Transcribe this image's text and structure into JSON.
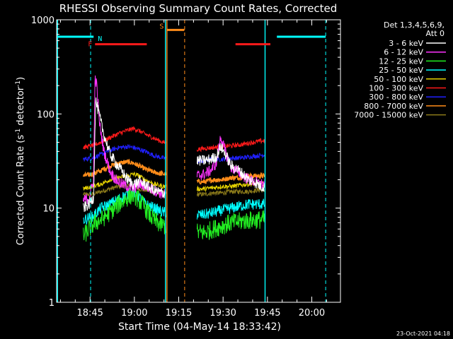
{
  "chart_data": {
    "type": "line",
    "title": "RHESSI Observing Summary Count Rates, Corrected",
    "xlabel": "Start Time (04-May-14 18:33:42)",
    "ylabel_main": "Corrected Count Rate (s",
    "ylabel_sup1": "-1",
    "ylabel_mid": " detector",
    "ylabel_sup2": "-1",
    "ylabel_end": ")",
    "y_scale": "log",
    "ylim": [
      1,
      1000
    ],
    "y_ticks": [
      "1",
      "10",
      "100",
      "1000"
    ],
    "xlim_minutes": [
      0,
      96
    ],
    "x_ticks": [
      "18:45",
      "19:00",
      "19:15",
      "19:30",
      "19:45",
      "20:00"
    ],
    "x_tick_minutes": [
      11.3,
      26.3,
      41.3,
      56.3,
      71.3,
      86.3
    ],
    "grid": false,
    "legend_header": [
      "Det 1,3,4,5,6,9,",
      "Att 0"
    ],
    "legend_position": "right",
    "series": [
      {
        "name": "3 - 6 keV",
        "color": "#ffffff"
      },
      {
        "name": "6 - 12 keV",
        "color": "#ff33ff"
      },
      {
        "name": "12 - 25 keV",
        "color": "#22ee22"
      },
      {
        "name": "25 - 50 keV",
        "color": "#00ffff"
      },
      {
        "name": "50 - 100 keV",
        "color": "#e6d200"
      },
      {
        "name": "100 - 300 keV",
        "color": "#ff1a1a"
      },
      {
        "name": "300 - 800 keV",
        "color": "#2020ff"
      },
      {
        "name": "800 - 7000 keV",
        "color": "#ff8c1a"
      },
      {
        "name": "7000 - 15000 keV",
        "color": "#8b7a1a"
      }
    ],
    "segments": [
      {
        "start": 9,
        "end": 37,
        "name": "3 - 6 keV",
        "points": [
          [
            9,
            10
          ],
          [
            11,
            11
          ],
          [
            12.5,
            13
          ],
          [
            13.2,
            140
          ],
          [
            14,
            110
          ],
          [
            16,
            60
          ],
          [
            18,
            38
          ],
          [
            20,
            30
          ],
          [
            22,
            25
          ],
          [
            24,
            20
          ],
          [
            26,
            18
          ],
          [
            28,
            19
          ],
          [
            30,
            18
          ],
          [
            32,
            16
          ],
          [
            34,
            15
          ],
          [
            36,
            14.5
          ],
          [
            37,
            14.5
          ]
        ]
      },
      {
        "start": 9,
        "end": 37,
        "name": "6 - 12 keV",
        "points": [
          [
            9,
            12
          ],
          [
            11,
            13
          ],
          [
            12.5,
            20
          ],
          [
            13,
            250
          ],
          [
            13.6,
            200
          ],
          [
            14.5,
            80
          ],
          [
            16,
            40
          ],
          [
            18,
            25
          ],
          [
            20,
            20
          ],
          [
            22,
            18
          ],
          [
            24,
            17
          ],
          [
            26,
            16
          ],
          [
            28,
            18
          ],
          [
            30,
            17
          ],
          [
            32,
            16
          ],
          [
            34,
            15
          ],
          [
            36,
            14
          ],
          [
            37,
            14
          ]
        ]
      },
      {
        "start": 9,
        "end": 37,
        "name": "12 - 25 keV",
        "points": [
          [
            9,
            5
          ],
          [
            11,
            6
          ],
          [
            13,
            7
          ],
          [
            15,
            7.5
          ],
          [
            18,
            9
          ],
          [
            21,
            11
          ],
          [
            24,
            13
          ],
          [
            26,
            14
          ],
          [
            28,
            12
          ],
          [
            30,
            10
          ],
          [
            32,
            8
          ],
          [
            34,
            7
          ],
          [
            36,
            6.5
          ],
          [
            37,
            6.5
          ]
        ]
      },
      {
        "start": 9,
        "end": 37,
        "name": "25 - 50 keV",
        "points": [
          [
            9,
            7.5
          ],
          [
            12,
            8
          ],
          [
            15,
            10
          ],
          [
            18,
            11
          ],
          [
            21,
            12.5
          ],
          [
            24,
            14
          ],
          [
            26,
            15
          ],
          [
            28,
            13
          ],
          [
            30,
            11
          ],
          [
            33,
            10
          ],
          [
            36,
            9
          ],
          [
            37,
            9
          ]
        ]
      },
      {
        "start": 9,
        "end": 37,
        "name": "50 - 100 keV",
        "points": [
          [
            9,
            16
          ],
          [
            12,
            17
          ],
          [
            15,
            18
          ],
          [
            18,
            20
          ],
          [
            21,
            21
          ],
          [
            24,
            22
          ],
          [
            26,
            23
          ],
          [
            28,
            22
          ],
          [
            30,
            20
          ],
          [
            33,
            18
          ],
          [
            36,
            17
          ],
          [
            37,
            17
          ]
        ]
      },
      {
        "start": 9,
        "end": 37,
        "name": "100 - 300 keV",
        "points": [
          [
            9,
            44
          ],
          [
            12,
            46
          ],
          [
            15,
            50
          ],
          [
            18,
            56
          ],
          [
            21,
            62
          ],
          [
            24,
            67
          ],
          [
            26,
            70
          ],
          [
            28,
            66
          ],
          [
            30,
            61
          ],
          [
            33,
            55
          ],
          [
            36,
            50
          ],
          [
            37,
            49
          ]
        ]
      },
      {
        "start": 9,
        "end": 37,
        "name": "300 - 800 keV",
        "points": [
          [
            9,
            33
          ],
          [
            12,
            34
          ],
          [
            15,
            37
          ],
          [
            18,
            41
          ],
          [
            21,
            44
          ],
          [
            24,
            45
          ],
          [
            26,
            44
          ],
          [
            28,
            42
          ],
          [
            30,
            40
          ],
          [
            33,
            36
          ],
          [
            36,
            34
          ],
          [
            37,
            34
          ]
        ]
      },
      {
        "start": 9,
        "end": 37,
        "name": "800 - 7000 keV",
        "points": [
          [
            9,
            22
          ],
          [
            12,
            23
          ],
          [
            15,
            25
          ],
          [
            18,
            28
          ],
          [
            21,
            30
          ],
          [
            24,
            31
          ],
          [
            26,
            30
          ],
          [
            28,
            28
          ],
          [
            30,
            26
          ],
          [
            33,
            24
          ],
          [
            36,
            23
          ],
          [
            37,
            23
          ]
        ]
      },
      {
        "start": 9,
        "end": 37,
        "name": "7000 - 15000 keV",
        "points": [
          [
            9,
            14
          ],
          [
            12,
            14
          ],
          [
            15,
            15
          ],
          [
            18,
            16
          ],
          [
            21,
            17
          ],
          [
            24,
            17.5
          ],
          [
            26,
            17
          ],
          [
            28,
            16
          ],
          [
            30,
            15.5
          ],
          [
            33,
            15
          ],
          [
            36,
            14.5
          ],
          [
            37,
            14.5
          ]
        ]
      },
      {
        "start": 47.5,
        "end": 70.5,
        "name": "3 - 6 keV",
        "points": [
          [
            47.5,
            32
          ],
          [
            50,
            32
          ],
          [
            52,
            33
          ],
          [
            54,
            35
          ],
          [
            55.5,
            45
          ],
          [
            57,
            38
          ],
          [
            59,
            28
          ],
          [
            61,
            26
          ],
          [
            63,
            23
          ],
          [
            65,
            20
          ],
          [
            67,
            19
          ],
          [
            69,
            17
          ],
          [
            70.5,
            17
          ]
        ]
      },
      {
        "start": 47.5,
        "end": 70.5,
        "name": "6 - 12 keV",
        "points": [
          [
            47.5,
            22
          ],
          [
            50,
            23
          ],
          [
            52,
            25
          ],
          [
            54,
            30
          ],
          [
            55.5,
            58
          ],
          [
            57,
            40
          ],
          [
            59,
            27
          ],
          [
            61,
            25
          ],
          [
            63,
            22
          ],
          [
            65,
            20
          ],
          [
            67,
            19
          ],
          [
            69,
            18
          ],
          [
            70.5,
            18
          ]
        ]
      },
      {
        "start": 47.5,
        "end": 70.5,
        "name": "12 - 25 keV",
        "points": [
          [
            47.5,
            5.5
          ],
          [
            50,
            5.5
          ],
          [
            53,
            6
          ],
          [
            56,
            6.5
          ],
          [
            59,
            7
          ],
          [
            62,
            7.2
          ],
          [
            65,
            7.4
          ],
          [
            68,
            7.5
          ],
          [
            70.5,
            7.6
          ]
        ]
      },
      {
        "start": 47.5,
        "end": 70.5,
        "name": "25 - 50 keV",
        "points": [
          [
            47.5,
            8.5
          ],
          [
            50,
            8.5
          ],
          [
            53,
            9
          ],
          [
            56,
            9.5
          ],
          [
            59,
            10
          ],
          [
            62,
            10.5
          ],
          [
            65,
            11
          ],
          [
            68,
            11
          ],
          [
            70.5,
            11
          ]
        ]
      },
      {
        "start": 47.5,
        "end": 70.5,
        "name": "50 - 100 keV",
        "points": [
          [
            47.5,
            16
          ],
          [
            50,
            16
          ],
          [
            53,
            16.5
          ],
          [
            56,
            17
          ],
          [
            59,
            17
          ],
          [
            62,
            17.5
          ],
          [
            65,
            18
          ],
          [
            68,
            18
          ],
          [
            70.5,
            18
          ]
        ]
      },
      {
        "start": 47.5,
        "end": 70.5,
        "name": "100 - 300 keV",
        "points": [
          [
            47.5,
            42
          ],
          [
            50,
            43
          ],
          [
            53,
            44
          ],
          [
            56,
            45
          ],
          [
            59,
            46
          ],
          [
            62,
            47
          ],
          [
            65,
            49
          ],
          [
            68,
            51
          ],
          [
            70.5,
            52
          ]
        ]
      },
      {
        "start": 47.5,
        "end": 70.5,
        "name": "300 - 800 keV",
        "points": [
          [
            47.5,
            31
          ],
          [
            50,
            32
          ],
          [
            53,
            33
          ],
          [
            56,
            33
          ],
          [
            59,
            34
          ],
          [
            62,
            34
          ],
          [
            65,
            35
          ],
          [
            68,
            36
          ],
          [
            70.5,
            37
          ]
        ]
      },
      {
        "start": 47.5,
        "end": 70.5,
        "name": "800 - 7000 keV",
        "points": [
          [
            47.5,
            19
          ],
          [
            50,
            19
          ],
          [
            53,
            20
          ],
          [
            56,
            20
          ],
          [
            59,
            21
          ],
          [
            62,
            21
          ],
          [
            65,
            22
          ],
          [
            68,
            22
          ],
          [
            70.5,
            22
          ]
        ]
      },
      {
        "start": 47.5,
        "end": 70.5,
        "name": "7000 - 15000 keV",
        "points": [
          [
            47.5,
            14
          ],
          [
            50,
            14
          ],
          [
            53,
            14.5
          ],
          [
            56,
            14.5
          ],
          [
            59,
            15
          ],
          [
            62,
            15
          ],
          [
            65,
            15
          ],
          [
            68,
            15.5
          ],
          [
            70.5,
            15.5
          ]
        ]
      }
    ],
    "flag_bars": [
      {
        "label": "F",
        "color": "#ff1a1a",
        "start": 13,
        "end": 30.5,
        "y": 550
      },
      {
        "label": "",
        "color": "#ff1a1a",
        "start": 60.5,
        "end": 72.3,
        "y": 550
      },
      {
        "label": "N",
        "color": "#00ffff",
        "start": 0,
        "end": 12.5,
        "y": 660
      },
      {
        "label": "",
        "color": "#00ffff",
        "start": 74.5,
        "end": 91,
        "y": 660
      },
      {
        "label": "S",
        "color": "#ff8c1a",
        "start": 37.2,
        "end": 43.2,
        "y": 780
      }
    ],
    "vlines": [
      {
        "x": 0.3,
        "color": "#00ffff",
        "style": "solid"
      },
      {
        "x": 11.5,
        "color": "#00ffff",
        "style": "dashed"
      },
      {
        "x": 36.8,
        "color": "#00ffff",
        "style": "solid"
      },
      {
        "x": 37.3,
        "color": "#ff8c1a",
        "style": "solid"
      },
      {
        "x": 43.3,
        "color": "#ff8c1a",
        "style": "dashed"
      },
      {
        "x": 70.5,
        "color": "#00ffff",
        "style": "solid"
      },
      {
        "x": 91,
        "color": "#00ffff",
        "style": "dashed"
      }
    ]
  },
  "footer_timestamp": "23-Oct-2021 04:18"
}
